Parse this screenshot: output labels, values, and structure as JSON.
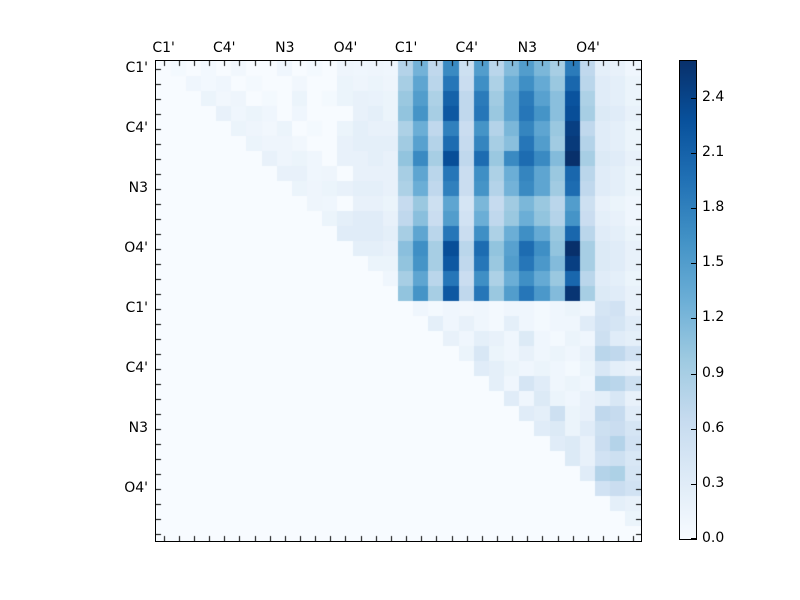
{
  "figure": {
    "background": "#ffffff",
    "text_color": "#000000"
  },
  "chart_data": {
    "type": "heatmap",
    "title": "",
    "xlabel": "",
    "ylabel": "",
    "grid": false,
    "grid_size": 32,
    "colormap": "Blues",
    "vmin": 0.0,
    "vmax": 2.6,
    "colormap_anchors": [
      "#f7fbff",
      "#deebf7",
      "#c6dbef",
      "#9ecae1",
      "#6baed6",
      "#4292c6",
      "#2171b5",
      "#08519c",
      "#08306b"
    ],
    "x_axis": {
      "side": "top",
      "tick_labels": [
        "C1'",
        "C4'",
        "N3",
        "O4'",
        "C1'",
        "C4'",
        "N3",
        "O4'"
      ],
      "tick_positions": [
        0,
        4,
        8,
        12,
        16,
        20,
        24,
        28
      ]
    },
    "y_axis": {
      "side": "left",
      "tick_labels": [
        "C1'",
        "C4'",
        "N3",
        "O4'",
        "C1'",
        "C4'",
        "N3",
        "O4'"
      ],
      "tick_positions": [
        0,
        4,
        8,
        12,
        16,
        20,
        24,
        28
      ]
    },
    "colorbar": {
      "location": "right",
      "tick_labels": [
        "0.0",
        "0.3",
        "0.6",
        "0.9",
        "1.2",
        "1.5",
        "1.8",
        "2.1",
        "2.4"
      ],
      "tick_values": [
        0.0,
        0.3,
        0.6,
        0.9,
        1.2,
        1.5,
        1.8,
        2.1,
        2.4
      ]
    },
    "matrix": [
      [
        0,
        0.05,
        0,
        0.06,
        0,
        0.08,
        0,
        0,
        0.1,
        0,
        0.05,
        0,
        0.12,
        0.1,
        0.12,
        0.1,
        0.8,
        1.25,
        0.7,
        1.7,
        0.55,
        1.5,
        0.75,
        1.15,
        1.5,
        1.2,
        0.9,
        1.85,
        0.7,
        0.25,
        0.2,
        0.1
      ],
      [
        0,
        0,
        0.1,
        0.06,
        0.1,
        0,
        0.05,
        0,
        0,
        0.08,
        0,
        0,
        0.15,
        0.12,
        0.15,
        0.12,
        0.9,
        1.4,
        0.75,
        1.9,
        0.6,
        1.65,
        0.85,
        1.3,
        1.65,
        1.35,
        1.0,
        2.05,
        0.75,
        0.3,
        0.25,
        0.15
      ],
      [
        0,
        0,
        0,
        0.15,
        0.08,
        0.12,
        0,
        0.05,
        0,
        0.15,
        0,
        0.05,
        0.15,
        0.2,
        0.18,
        0.15,
        1.0,
        1.5,
        0.85,
        2.1,
        0.7,
        1.85,
        0.95,
        1.4,
        1.85,
        1.45,
        1.1,
        2.25,
        0.85,
        0.3,
        0.25,
        0.15
      ],
      [
        0,
        0,
        0,
        0,
        0.2,
        0.1,
        0.15,
        0.1,
        0,
        0.1,
        0,
        0,
        0,
        0.2,
        0.25,
        0.15,
        1.05,
        1.6,
        0.9,
        2.2,
        0.7,
        1.9,
        1.0,
        1.4,
        1.9,
        1.6,
        1.1,
        2.3,
        0.9,
        0.35,
        0.3,
        0.2
      ],
      [
        0,
        0,
        0,
        0,
        0,
        0.15,
        0.12,
        0.08,
        0.15,
        0,
        0.05,
        0,
        0.15,
        0.25,
        0.2,
        0.2,
        0.85,
        1.3,
        0.7,
        1.8,
        0.6,
        1.6,
        0.8,
        1.2,
        1.75,
        1.4,
        1.0,
        2.45,
        0.7,
        0.3,
        0.25,
        0.15
      ],
      [
        0,
        0,
        0,
        0,
        0,
        0,
        0.15,
        0.12,
        0.12,
        0.08,
        0,
        0,
        0.2,
        0.25,
        0.25,
        0.25,
        0.95,
        1.45,
        0.8,
        2.0,
        0.65,
        1.75,
        0.9,
        1.1,
        1.9,
        1.5,
        0.95,
        2.5,
        0.8,
        0.3,
        0.25,
        0.15
      ],
      [
        0,
        0,
        0,
        0,
        0,
        0,
        0,
        0.2,
        0.12,
        0.15,
        0.1,
        0,
        0.2,
        0.2,
        0.25,
        0.2,
        1.05,
        1.7,
        0.9,
        2.3,
        0.7,
        2.0,
        1.0,
        1.7,
        2.0,
        1.7,
        1.15,
        2.6,
        0.9,
        0.35,
        0.3,
        0.2
      ],
      [
        0,
        0,
        0,
        0,
        0,
        0,
        0,
        0,
        0.2,
        0.2,
        0.1,
        0.12,
        0,
        0.2,
        0.2,
        0.2,
        0.9,
        1.4,
        0.75,
        1.9,
        0.6,
        1.65,
        0.85,
        1.3,
        1.75,
        1.4,
        1.0,
        2.05,
        0.75,
        0.3,
        0.25,
        0.15
      ],
      [
        0,
        0,
        0,
        0,
        0,
        0,
        0,
        0,
        0,
        0.15,
        0.12,
        0.15,
        0.2,
        0.25,
        0.25,
        0.2,
        0.85,
        1.3,
        0.7,
        1.8,
        0.6,
        1.6,
        0.8,
        1.25,
        1.7,
        1.4,
        0.95,
        2.0,
        0.7,
        0.3,
        0.25,
        0.15
      ],
      [
        0,
        0,
        0,
        0,
        0,
        0,
        0,
        0,
        0,
        0,
        0.12,
        0.1,
        0,
        0.2,
        0.2,
        0.15,
        0.65,
        1.0,
        0.55,
        1.4,
        0.45,
        1.2,
        0.65,
        0.95,
        1.2,
        1.0,
        0.75,
        1.5,
        0.55,
        0.2,
        0.15,
        0.1
      ],
      [
        0,
        0,
        0,
        0,
        0,
        0,
        0,
        0,
        0,
        0,
        0,
        0.15,
        0.25,
        0.3,
        0.3,
        0.2,
        0.7,
        1.1,
        0.6,
        1.5,
        0.5,
        1.3,
        0.7,
        1.0,
        1.3,
        1.05,
        0.8,
        1.6,
        0.6,
        0.25,
        0.2,
        0.1
      ],
      [
        0,
        0,
        0,
        0,
        0,
        0,
        0,
        0,
        0,
        0,
        0,
        0,
        0.3,
        0.3,
        0.3,
        0.25,
        0.9,
        1.4,
        0.75,
        1.9,
        0.6,
        1.65,
        0.85,
        1.3,
        1.65,
        1.35,
        1.0,
        2.05,
        0.75,
        0.3,
        0.25,
        0.15
      ],
      [
        0,
        0,
        0,
        0,
        0,
        0,
        0,
        0,
        0,
        0,
        0,
        0,
        0,
        0.25,
        0.25,
        0.2,
        1.1,
        1.65,
        0.9,
        2.3,
        0.75,
        2.0,
        1.05,
        1.45,
        2.0,
        1.65,
        1.05,
        2.6,
        0.9,
        0.35,
        0.3,
        0.2
      ],
      [
        0,
        0,
        0,
        0,
        0,
        0,
        0,
        0,
        0,
        0,
        0,
        0,
        0,
        0,
        0.15,
        0.15,
        1.05,
        1.6,
        0.9,
        2.2,
        0.7,
        1.9,
        1.0,
        1.5,
        1.9,
        1.55,
        1.15,
        2.45,
        0.9,
        0.35,
        0.3,
        0.2
      ],
      [
        0,
        0,
        0,
        0,
        0,
        0,
        0,
        0,
        0,
        0,
        0,
        0,
        0,
        0,
        0,
        0.1,
        0.9,
        1.4,
        0.75,
        1.9,
        0.6,
        1.65,
        0.85,
        1.3,
        1.65,
        1.35,
        1.0,
        2.05,
        0.75,
        0.3,
        0.25,
        0.15
      ],
      [
        0,
        0,
        0,
        0,
        0,
        0,
        0,
        0,
        0,
        0,
        0,
        0,
        0,
        0,
        0,
        0,
        1.05,
        1.6,
        0.9,
        2.2,
        0.7,
        1.9,
        1.0,
        1.5,
        1.9,
        1.55,
        1.15,
        2.55,
        0.9,
        0.35,
        0.3,
        0.2
      ],
      [
        0,
        0,
        0,
        0,
        0,
        0,
        0,
        0,
        0,
        0,
        0,
        0,
        0,
        0,
        0,
        0,
        0,
        0.1,
        0.05,
        0.1,
        0.08,
        0.1,
        0.05,
        0.1,
        0.1,
        0.05,
        0.1,
        0.15,
        0.1,
        0.45,
        0.5,
        0.2
      ],
      [
        0,
        0,
        0,
        0,
        0,
        0,
        0,
        0,
        0,
        0,
        0,
        0,
        0,
        0,
        0,
        0,
        0,
        0,
        0.25,
        0.1,
        0.2,
        0.1,
        0.05,
        0.25,
        0.1,
        0.05,
        0.1,
        0.1,
        0.3,
        0.5,
        0.45,
        0.3
      ],
      [
        0,
        0,
        0,
        0,
        0,
        0,
        0,
        0,
        0,
        0,
        0,
        0,
        0,
        0,
        0,
        0,
        0,
        0,
        0,
        0.2,
        0.1,
        0.25,
        0.2,
        0.1,
        0.35,
        0.1,
        0.05,
        0.15,
        0.1,
        0.55,
        0.3,
        0.25
      ],
      [
        0,
        0,
        0,
        0,
        0,
        0,
        0,
        0,
        0,
        0,
        0,
        0,
        0,
        0,
        0,
        0,
        0,
        0,
        0,
        0,
        0.15,
        0.4,
        0.15,
        0.1,
        0.2,
        0.1,
        0.15,
        0.1,
        0.2,
        0.75,
        0.7,
        0.5
      ],
      [
        0,
        0,
        0,
        0,
        0,
        0,
        0,
        0,
        0,
        0,
        0,
        0,
        0,
        0,
        0,
        0,
        0,
        0,
        0,
        0,
        0,
        0.3,
        0.25,
        0.15,
        0.1,
        0.15,
        0.1,
        0.05,
        0.15,
        0.4,
        0.25,
        0.2
      ],
      [
        0,
        0,
        0,
        0,
        0,
        0,
        0,
        0,
        0,
        0,
        0,
        0,
        0,
        0,
        0,
        0,
        0,
        0,
        0,
        0,
        0,
        0,
        0.25,
        0.1,
        0.45,
        0.3,
        0.1,
        0.15,
        0.1,
        0.8,
        0.75,
        0.55
      ],
      [
        0,
        0,
        0,
        0,
        0,
        0,
        0,
        0,
        0,
        0,
        0,
        0,
        0,
        0,
        0,
        0,
        0,
        0,
        0,
        0,
        0,
        0,
        0,
        0.3,
        0.1,
        0.35,
        0.15,
        0.1,
        0.2,
        0.25,
        0.4,
        0.2
      ],
      [
        0,
        0,
        0,
        0,
        0,
        0,
        0,
        0,
        0,
        0,
        0,
        0,
        0,
        0,
        0,
        0,
        0,
        0,
        0,
        0,
        0,
        0,
        0,
        0,
        0.3,
        0.25,
        0.55,
        0.15,
        0.2,
        0.7,
        0.65,
        0.3
      ],
      [
        0,
        0,
        0,
        0,
        0,
        0,
        0,
        0,
        0,
        0,
        0,
        0,
        0,
        0,
        0,
        0,
        0,
        0,
        0,
        0,
        0,
        0,
        0,
        0,
        0,
        0.3,
        0.35,
        0.15,
        0.3,
        0.55,
        0.6,
        0.45
      ],
      [
        0,
        0,
        0,
        0,
        0,
        0,
        0,
        0,
        0,
        0,
        0,
        0,
        0,
        0,
        0,
        0,
        0,
        0,
        0,
        0,
        0,
        0,
        0,
        0,
        0,
        0,
        0.3,
        0.35,
        0.2,
        0.6,
        0.8,
        0.5
      ],
      [
        0,
        0,
        0,
        0,
        0,
        0,
        0,
        0,
        0,
        0,
        0,
        0,
        0,
        0,
        0,
        0,
        0,
        0,
        0,
        0,
        0,
        0,
        0,
        0,
        0,
        0,
        0,
        0.35,
        0.2,
        0.5,
        0.55,
        0.4
      ],
      [
        0,
        0,
        0,
        0,
        0,
        0,
        0,
        0,
        0,
        0,
        0,
        0,
        0,
        0,
        0,
        0,
        0,
        0,
        0,
        0,
        0,
        0,
        0,
        0,
        0,
        0,
        0,
        0,
        0.3,
        0.8,
        0.85,
        0.45
      ],
      [
        0,
        0,
        0,
        0,
        0,
        0,
        0,
        0,
        0,
        0,
        0,
        0,
        0,
        0,
        0,
        0,
        0,
        0,
        0,
        0,
        0,
        0,
        0,
        0,
        0,
        0,
        0,
        0,
        0,
        0.5,
        0.6,
        0.5
      ],
      [
        0,
        0,
        0,
        0,
        0,
        0,
        0,
        0,
        0,
        0,
        0,
        0,
        0,
        0,
        0,
        0,
        0,
        0,
        0,
        0,
        0,
        0,
        0,
        0,
        0,
        0,
        0,
        0,
        0,
        0,
        0.25,
        0.2
      ],
      [
        0,
        0,
        0,
        0,
        0,
        0,
        0,
        0,
        0,
        0,
        0,
        0,
        0,
        0,
        0,
        0,
        0,
        0,
        0,
        0,
        0,
        0,
        0,
        0,
        0,
        0,
        0,
        0,
        0,
        0,
        0,
        0.15
      ],
      [
        0,
        0,
        0,
        0,
        0,
        0,
        0,
        0,
        0,
        0,
        0,
        0,
        0,
        0,
        0,
        0,
        0,
        0,
        0,
        0,
        0,
        0,
        0,
        0,
        0,
        0,
        0,
        0,
        0,
        0,
        0,
        0
      ]
    ]
  }
}
